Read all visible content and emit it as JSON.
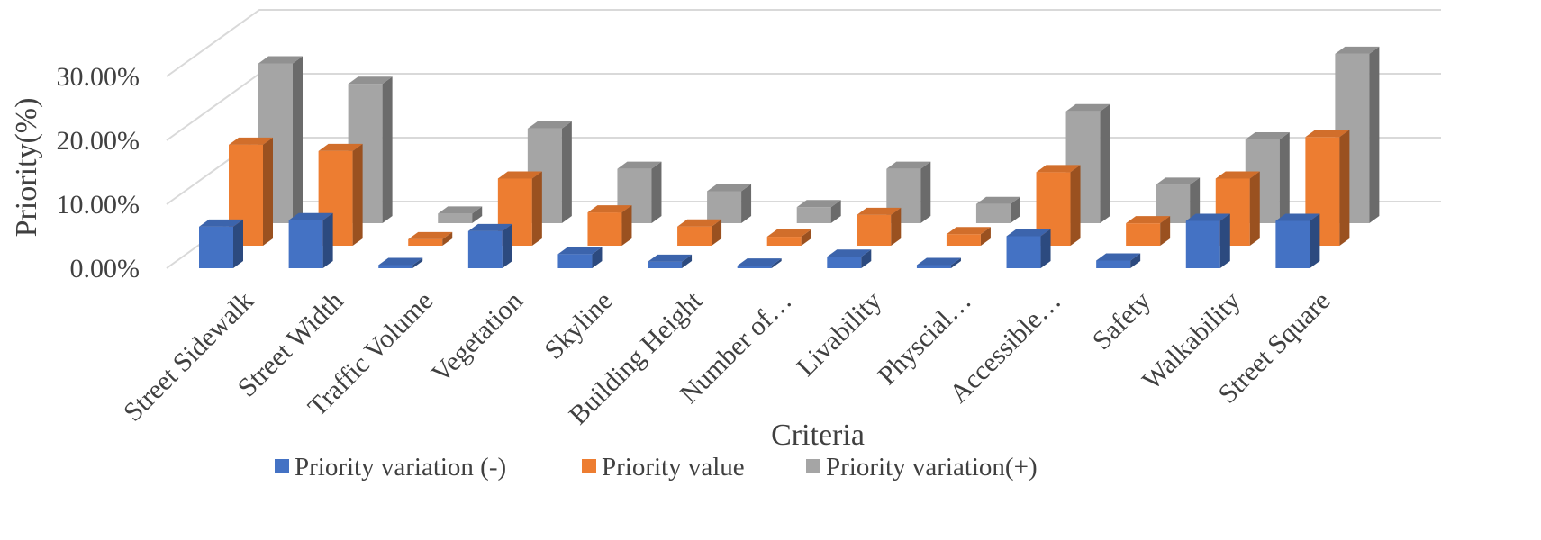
{
  "chart_data": {
    "type": "bar",
    "style": "3d-clustered-column",
    "xlabel": "Criteria",
    "ylabel": "Priority(%)",
    "ylim": [
      0,
      0.3
    ],
    "yticks": [
      "0.00%",
      "10.00%",
      "20.00%",
      "30.00%"
    ],
    "ytick_values": [
      0,
      0.1,
      0.2,
      0.3
    ],
    "grid": true,
    "legend_position": "bottom",
    "categories": [
      "Street Sidewalk",
      "Street Width",
      "Traffic Volume",
      "Vegetation",
      "Skyline",
      "Building Height",
      "Number of…",
      "Livability",
      "Physcial…",
      "Accessible…",
      "Safety",
      "Walkability",
      "Street Square"
    ],
    "series": [
      {
        "name": "Priority variation (-)",
        "color": "#4472C4",
        "values": [
          0.065,
          0.075,
          0.005,
          0.058,
          0.022,
          0.01,
          0.004,
          0.018,
          0.005,
          0.05,
          0.012,
          0.074,
          0.074
        ]
      },
      {
        "name": "Priority value",
        "color": "#ED7D31",
        "values": [
          0.158,
          0.148,
          0.01,
          0.105,
          0.052,
          0.03,
          0.014,
          0.048,
          0.018,
          0.115,
          0.035,
          0.105,
          0.17
        ]
      },
      {
        "name": "Priority variation(+)",
        "color": "#A5A5A5",
        "values": [
          0.25,
          0.218,
          0.015,
          0.148,
          0.085,
          0.05,
          0.025,
          0.085,
          0.03,
          0.175,
          0.06,
          0.131,
          0.265
        ]
      }
    ]
  }
}
